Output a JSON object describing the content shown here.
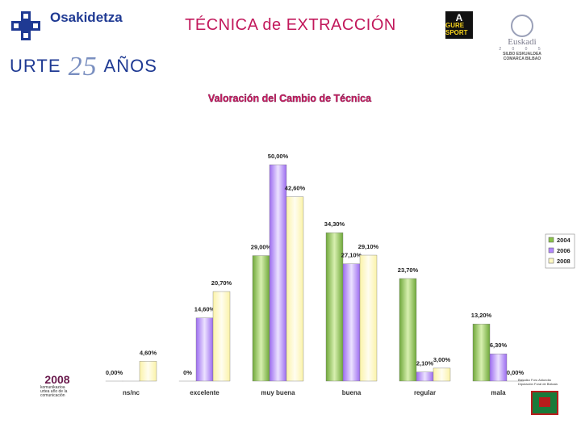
{
  "header": {
    "org_name": "Osakidetza",
    "urte_prefix": "URTE",
    "urte_number": "25",
    "urte_suffix": "AÑOS",
    "title": "TÉCNICA de EXTRACCIÓN",
    "badge_top": "GURE SPORT",
    "badge_letter": "A",
    "euskadi_word": "Euskadi",
    "euskadi_year_digits": "2 0 0 5",
    "euskadi_line1": "SILBO ESKUALDEA",
    "euskadi_line2": "COMARCA BILBAO"
  },
  "chart_data": {
    "type": "bar",
    "title": "Valoración del Cambio de Técnica",
    "categories": [
      "ns/nc",
      "excelente",
      "muy buena",
      "buena",
      "regular",
      "mala"
    ],
    "series": [
      {
        "name": "2004",
        "values": [
          0.0,
          0.0,
          29.0,
          34.3,
          23.7,
          13.2
        ],
        "labels": [
          "0,00%",
          "0%",
          "29,00%",
          "34,30%",
          "23,70%",
          "13,20%"
        ]
      },
      {
        "name": "2006",
        "values": [
          0.0,
          14.6,
          50.0,
          27.1,
          2.1,
          6.3
        ],
        "labels": [
          "",
          "14,60%",
          "50,00%",
          "27,10%",
          "2,10%",
          "6,30%"
        ]
      },
      {
        "name": "2008",
        "values": [
          4.6,
          20.7,
          42.6,
          29.1,
          3.0,
          0.0
        ],
        "labels": [
          "4,60%",
          "20,70%",
          "42,60%",
          "29,10%",
          "3,00%",
          "0,00%"
        ]
      }
    ],
    "ylim": [
      0,
      50
    ],
    "legend_position": "right",
    "colors": {
      "2004": "#8bc34a",
      "2006": "#b388ff",
      "2008": "#fff9c4"
    }
  },
  "footer": {
    "year_logo": "2008",
    "year_logo_text": "komunikazioa urtea año de la comunicación",
    "right_logo_text": "Bizkaiko Foru Aldundia Diputación Foral de Bizkaia"
  }
}
